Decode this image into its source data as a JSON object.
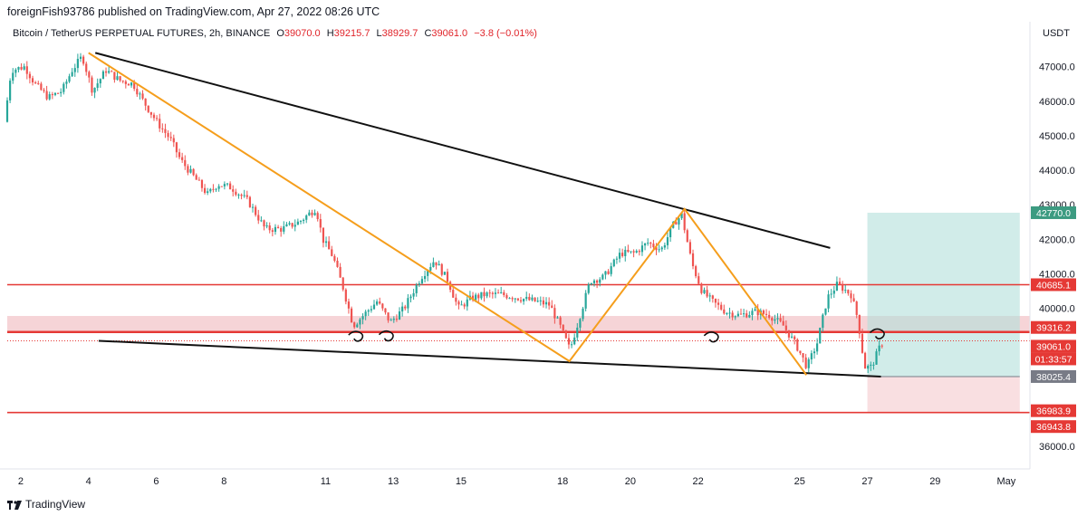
{
  "header": {
    "publisher": "foreignFish93786 published on TradingView.com, Apr 27, 2022 08:26 UTC"
  },
  "legend": {
    "symbol": "Bitcoin / TetherUS PERPETUAL FUTURES, 2h, BINANCE",
    "o_label": "O",
    "o": "39070.0",
    "h_label": "H",
    "h": "39215.7",
    "l_label": "L",
    "l": "38929.7",
    "c_label": "C",
    "c": "39061.0",
    "change": "−3.8 (−0.01%)"
  },
  "footer": {
    "brand": "TradingView",
    "logo_icon": "tradingview-logo-icon"
  },
  "colors": {
    "up": "#26a69a",
    "down": "#ef5350",
    "level": "#e53935",
    "pattern": "#f59e1c",
    "trend": "#111111",
    "profit": "#b2dfdb",
    "loss": "#f8d7da"
  },
  "chart_data": {
    "type": "candlestick",
    "title": "Bitcoin / TetherUS PERPETUAL FUTURES, 2h, BINANCE",
    "currency": "USDT",
    "xlabel": "",
    "ylabel": "",
    "ylim": [
      35350,
      47750
    ],
    "x_domain": [
      1.6,
      31.8
    ],
    "x_ticks": [
      {
        "day": 2,
        "label": "2"
      },
      {
        "day": 4,
        "label": "4"
      },
      {
        "day": 6,
        "label": "6"
      },
      {
        "day": 8,
        "label": "8"
      },
      {
        "day": 11,
        "label": "11"
      },
      {
        "day": 13,
        "label": "13"
      },
      {
        "day": 15,
        "label": "15"
      },
      {
        "day": 18,
        "label": "18"
      },
      {
        "day": 20,
        "label": "20"
      },
      {
        "day": 22,
        "label": "22"
      },
      {
        "day": 25,
        "label": "25"
      },
      {
        "day": 27,
        "label": "27"
      },
      {
        "day": 29,
        "label": "29"
      },
      {
        "day": 31.1,
        "label": "May"
      }
    ],
    "y_ticks": [
      36000,
      37000,
      38000,
      39000,
      40000,
      41000,
      42000,
      43000,
      44000,
      45000,
      46000,
      47000
    ],
    "y_tick_labels": [
      "36000.0",
      "37000.0",
      "38000.0",
      "39000.0",
      "40000.0",
      "41000.0",
      "42000.0",
      "43000.0",
      "44000.0",
      "45000.0",
      "46000.0",
      "47000.0"
    ],
    "price_path": [
      [
        1.6,
        45400
      ],
      [
        1.8,
        46900
      ],
      [
        2.2,
        47000
      ],
      [
        2.5,
        46500
      ],
      [
        2.9,
        46100
      ],
      [
        3.3,
        46300
      ],
      [
        3.6,
        46900
      ],
      [
        3.9,
        47300
      ],
      [
        4.2,
        46300
      ],
      [
        4.6,
        46900
      ],
      [
        5.0,
        46600
      ],
      [
        5.4,
        46500
      ],
      [
        5.7,
        46000
      ],
      [
        6.1,
        45400
      ],
      [
        6.5,
        44900
      ],
      [
        6.8,
        44300
      ],
      [
        7.2,
        43800
      ],
      [
        7.6,
        43300
      ],
      [
        7.9,
        43600
      ],
      [
        8.3,
        43500
      ],
      [
        8.8,
        43100
      ],
      [
        9.3,
        42300
      ],
      [
        9.8,
        42300
      ],
      [
        10.3,
        42500
      ],
      [
        10.8,
        42900
      ],
      [
        11.0,
        42000
      ],
      [
        11.3,
        41500
      ],
      [
        11.6,
        40600
      ],
      [
        11.9,
        39500
      ],
      [
        12.2,
        39800
      ],
      [
        12.6,
        40200
      ],
      [
        13.0,
        39600
      ],
      [
        13.4,
        40000
      ],
      [
        13.9,
        40900
      ],
      [
        14.3,
        41400
      ],
      [
        14.7,
        40800
      ],
      [
        15.0,
        40000
      ],
      [
        15.4,
        40300
      ],
      [
        15.8,
        40400
      ],
      [
        16.3,
        40400
      ],
      [
        16.8,
        40300
      ],
      [
        17.3,
        40200
      ],
      [
        17.7,
        40100
      ],
      [
        18.0,
        39500
      ],
      [
        18.3,
        38800
      ],
      [
        18.6,
        39800
      ],
      [
        18.9,
        40800
      ],
      [
        19.3,
        40900
      ],
      [
        19.8,
        41600
      ],
      [
        20.2,
        41600
      ],
      [
        20.6,
        41900
      ],
      [
        21.0,
        41700
      ],
      [
        21.4,
        42500
      ],
      [
        21.6,
        42700
      ],
      [
        21.9,
        41300
      ],
      [
        22.2,
        40500
      ],
      [
        22.5,
        40200
      ],
      [
        22.9,
        39900
      ],
      [
        23.3,
        39800
      ],
      [
        23.8,
        39900
      ],
      [
        24.2,
        39800
      ],
      [
        24.6,
        39500
      ],
      [
        25.0,
        38900
      ],
      [
        25.3,
        38300
      ],
      [
        25.6,
        39000
      ],
      [
        25.9,
        40300
      ],
      [
        26.2,
        40700
      ],
      [
        26.6,
        40400
      ],
      [
        26.8,
        39700
      ],
      [
        27.0,
        38300
      ],
      [
        27.2,
        38300
      ],
      [
        27.5,
        39000
      ]
    ],
    "levels": [
      {
        "price": 40685.1,
        "label": "40685.1"
      },
      {
        "price": 39316.2,
        "label": "39316.2"
      },
      {
        "price": 36983.9,
        "label": "36983.9"
      }
    ],
    "extra_tag": {
      "price": 36943.8,
      "label": "36943.8"
    },
    "current_price": {
      "price": 39061.0,
      "label": "39061.0",
      "countdown": "01:33:57"
    },
    "support_zone": [
      39316,
      39780
    ],
    "trendlines": [
      {
        "name": "upper-trendline",
        "from": [
          4.2,
          47400
        ],
        "to": [
          25.9,
          41750
        ]
      },
      {
        "name": "lower-trendline",
        "from": [
          4.3,
          39060
        ],
        "to": [
          27.4,
          38025
        ]
      }
    ],
    "zigzag": [
      [
        4.0,
        47400
      ],
      [
        18.2,
        38470
      ],
      [
        21.6,
        42880
      ],
      [
        25.2,
        38070
      ]
    ],
    "position": {
      "x_start": 27.0,
      "x_end": 31.5,
      "entry": 38025.4,
      "entry_label": "38025.4",
      "target": 42770.0,
      "target_label": "42770.0",
      "stop": 36983.9
    },
    "annotations": [
      {
        "name": "curl-mark-1",
        "day": 12.0,
        "price": 39280
      },
      {
        "name": "curl-mark-2",
        "day": 12.9,
        "price": 39290
      },
      {
        "name": "curl-mark-3",
        "day": 22.5,
        "price": 39260
      },
      {
        "name": "curl-mark-4",
        "day": 27.4,
        "price": 39350
      }
    ]
  }
}
